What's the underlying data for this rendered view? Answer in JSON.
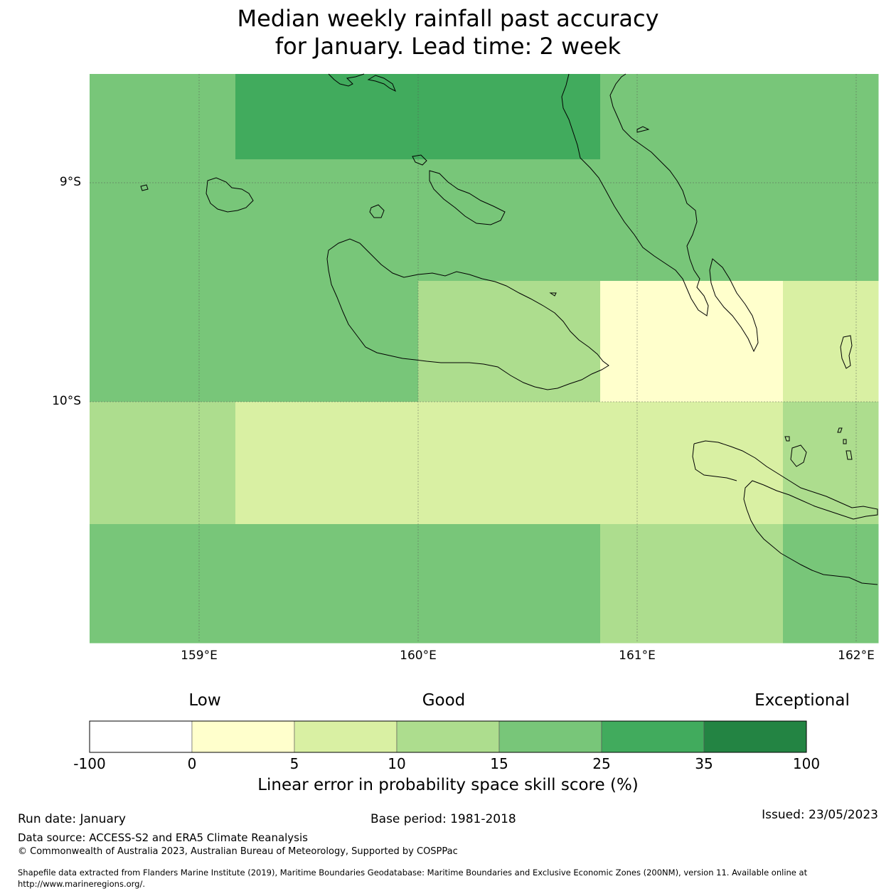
{
  "title": {
    "line1": "Median weekly rainfall past accuracy",
    "line2": "for January. Lead time: 2 week"
  },
  "map": {
    "lat_labels": [
      "9°S",
      "10°S"
    ],
    "lon_labels": [
      "159°E",
      "160°E",
      "161°E",
      "162°E"
    ],
    "cell_scores": [
      [
        "15-25",
        "25-35",
        "25-35",
        "15-25",
        "15-25"
      ],
      [
        "15-25",
        "15-25",
        "15-25",
        "15-25",
        "15-25"
      ],
      [
        "15-25",
        "15-25",
        "10-15",
        "0-5",
        "5-10"
      ],
      [
        "10-15",
        "5-10",
        "5-10",
        "5-10",
        "10-15"
      ],
      [
        "15-25",
        "15-25",
        "15-25",
        "10-15",
        "15-25"
      ]
    ],
    "coastline_color": "#000000"
  },
  "legend": {
    "categories": {
      "low": "Low",
      "good": "Good",
      "exceptional": "Exceptional"
    },
    "ticks": [
      "-100",
      "0",
      "5",
      "10",
      "15",
      "25",
      "35",
      "100"
    ],
    "colors": [
      "#ffffff",
      "#ffffcc",
      "#d9f0a3",
      "#addd8e",
      "#78c679",
      "#41ab5d",
      "#238443"
    ],
    "label": "Linear error in probability space skill score (%)"
  },
  "footer": {
    "run_date": "Run date: January",
    "base_period": "Base period: 1981-2018",
    "issued": "Issued: 23/05/2023",
    "data_source": "Data source: ACCESS-S2 and ERA5 Climate Reanalysis",
    "copyright": "© Commonwealth of Australia 2023, Australian Bureau of Meteorology, Supported by COSPPac",
    "shapefile_line1": "Shapefile data extracted from Flanders Marine Institute (2019), Maritime Boundaries Geodatabase: Maritime Boundaries and Exclusive Economic Zones (200NM), version 11. Available online at",
    "shapefile_line2": "http://www.marineregions.org/."
  }
}
